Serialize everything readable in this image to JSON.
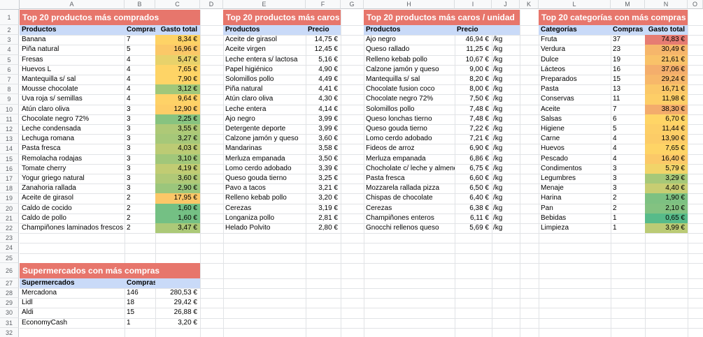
{
  "sheet": {
    "column_letters": [
      "A",
      "B",
      "C",
      "D",
      "E",
      "F",
      "G",
      "H",
      "I",
      "J",
      "K",
      "L",
      "M",
      "N",
      "O"
    ],
    "row_numbers": [
      "1",
      "2",
      "3",
      "4",
      "5",
      "6",
      "7",
      "8",
      "9",
      "10",
      "11",
      "12",
      "13",
      "14",
      "15",
      "16",
      "17",
      "18",
      "19",
      "20",
      "21",
      "22",
      "23",
      "24",
      "25",
      "26",
      "27",
      "28",
      "29",
      "30",
      "31",
      "32"
    ]
  },
  "colors": {
    "table_title_bg": "#e7766c",
    "table_title_text": "#ffffff",
    "header_row_bg": "#c9daf8",
    "gridline": "#e1e3e6",
    "gradient_min_color": "#57bb8a",
    "gradient_mid_color": "#ffd666",
    "gradient_max_color": "#e67c73"
  },
  "conditional_format": {
    "min": 0.65,
    "mid": 6.25,
    "max": 74.83
  },
  "tables": {
    "mas_comprados": {
      "title": "Top 20 productos más comprados",
      "headers": [
        "Productos",
        "Compras",
        "Gasto total"
      ],
      "rows": [
        [
          "Banana",
          "7",
          "8,34 €"
        ],
        [
          "Piña natural",
          "5",
          "16,96 €"
        ],
        [
          "Fresas",
          "4",
          "5,47 €"
        ],
        [
          "Huevos L",
          "4",
          "7,65 €"
        ],
        [
          "Mantequilla s/ sal",
          "4",
          "7,90 €"
        ],
        [
          "Mousse chocolate",
          "4",
          "3,12 €"
        ],
        [
          "Uva roja s/ semillas",
          "4",
          "9,64 €"
        ],
        [
          "Atún claro oliva",
          "3",
          "12,90 €"
        ],
        [
          "Chocolate negro 72%",
          "3",
          "2,25 €"
        ],
        [
          "Leche condensada",
          "3",
          "3,55 €"
        ],
        [
          "Lechuga romana",
          "3",
          "3,27 €"
        ],
        [
          "Pasta fresca",
          "3",
          "4,03 €"
        ],
        [
          "Remolacha rodajas",
          "3",
          "3,10 €"
        ],
        [
          "Tomate cherry",
          "3",
          "4,19 €"
        ],
        [
          "Yogur griego natural",
          "3",
          "3,60 €"
        ],
        [
          "Zanahoria rallada",
          "3",
          "2,90 €"
        ],
        [
          "Aceite de girasol",
          "2",
          "17,95 €"
        ],
        [
          "Caldo de cocido",
          "2",
          "1,60 €"
        ],
        [
          "Caldo de pollo",
          "2",
          "1,60 €"
        ],
        [
          "Champiñones laminados frescos",
          "2",
          "3,47 €"
        ]
      ]
    },
    "mas_caros": {
      "title": "Top 20 productos más caros",
      "headers": [
        "Productos",
        "Precio"
      ],
      "rows": [
        [
          "Aceite de girasol",
          "14,75 €"
        ],
        [
          "Aceite virgen",
          "12,45 €"
        ],
        [
          "Leche entera s/ lactosa",
          "5,16 €"
        ],
        [
          "Papel higiénico",
          "4,90 €"
        ],
        [
          "Solomillos pollo",
          "4,49 €"
        ],
        [
          "Piña natural",
          "4,41 €"
        ],
        [
          "Atún claro oliva",
          "4,30 €"
        ],
        [
          "Leche entera",
          "4,14 €"
        ],
        [
          "Ajo negro",
          "3,99 €"
        ],
        [
          "Detergente deporte",
          "3,99 €"
        ],
        [
          "Calzone jamón y queso",
          "3,60 €"
        ],
        [
          "Mandarinas",
          "3,58 €"
        ],
        [
          "Merluza empanada",
          "3,50 €"
        ],
        [
          "Lomo cerdo adobado",
          "3,39 €"
        ],
        [
          "Queso gouda tierno",
          "3,25 €"
        ],
        [
          "Pavo a tacos",
          "3,21 €"
        ],
        [
          "Relleno kebab pollo",
          "3,20 €"
        ],
        [
          "Cerezas",
          "3,19 €"
        ],
        [
          "Longaniza pollo",
          "2,81 €"
        ],
        [
          "Helado Polvito",
          "2,80 €"
        ]
      ]
    },
    "mas_caros_unidad": {
      "title": "Top 20 productos más caros / unidad",
      "headers": [
        "Productos",
        "Precio",
        ""
      ],
      "rows": [
        [
          "Ajo negro",
          "46,94 €",
          "/kg"
        ],
        [
          "Queso rallado",
          "11,25 €",
          "/kg"
        ],
        [
          "Relleno kebab pollo",
          "10,67 €",
          "/kg"
        ],
        [
          "Calzone jamón y queso",
          "9,00 €",
          "/kg"
        ],
        [
          "Mantequilla s/ sal",
          "8,20 €",
          "/kg"
        ],
        [
          "Chocolate fusion coco",
          "8,00 €",
          "/kg"
        ],
        [
          "Chocolate negro 72%",
          "7,50 €",
          "/kg"
        ],
        [
          "Solomillos pollo",
          "7,48 €",
          "/kg"
        ],
        [
          "Queso lonchas tierno",
          "7,48 €",
          "/kg"
        ],
        [
          "Queso gouda tierno",
          "7,22 €",
          "/kg"
        ],
        [
          "Lomo cerdo adobado",
          "7,21 €",
          "/kg"
        ],
        [
          "Fideos de arroz",
          "6,90 €",
          "/kg"
        ],
        [
          "Merluza empanada",
          "6,86 €",
          "/kg"
        ],
        [
          "Chocholate c/ leche y almendra",
          "6,75 €",
          "/kg"
        ],
        [
          "Pasta fresca",
          "6,60 €",
          "/kg"
        ],
        [
          "Mozzarela rallada pizza",
          "6,50 €",
          "/kg"
        ],
        [
          "Chispas de chocolate",
          "6,40 €",
          "/kg"
        ],
        [
          "Cerezas",
          "6,38 €",
          "/kg"
        ],
        [
          "Champiñones enteros",
          "6,11 €",
          "/kg"
        ],
        [
          "Gnocchi rellenos queso",
          "5,69 €",
          "/kg"
        ]
      ]
    },
    "categorias": {
      "title": "Top 20 categorías con más compras",
      "headers": [
        "Categorías",
        "Compras",
        "Gasto total"
      ],
      "rows": [
        [
          "Fruta",
          "37",
          "74,83 €"
        ],
        [
          "Verdura",
          "23",
          "30,49 €"
        ],
        [
          "Dulce",
          "19",
          "21,61 €"
        ],
        [
          "Lácteos",
          "16",
          "37,06 €"
        ],
        [
          "Preparados",
          "15",
          "29,24 €"
        ],
        [
          "Pasta",
          "13",
          "16,71 €"
        ],
        [
          "Conservas",
          "11",
          "11,98 €"
        ],
        [
          "Aceite",
          "7",
          "38,30 €"
        ],
        [
          "Salsas",
          "6",
          "6,70 €"
        ],
        [
          "Higiene",
          "5",
          "11,44 €"
        ],
        [
          "Carne",
          "4",
          "13,90 €"
        ],
        [
          "Huevos",
          "4",
          "7,65 €"
        ],
        [
          "Pescado",
          "4",
          "16,40 €"
        ],
        [
          "Condimentos",
          "3",
          "5,79 €"
        ],
        [
          "Legumbres",
          "3",
          "3,29 €"
        ],
        [
          "Menaje",
          "3",
          "4,40 €"
        ],
        [
          "Harina",
          "2",
          "1,90 €"
        ],
        [
          "Pan",
          "2",
          "2,10 €"
        ],
        [
          "Bebidas",
          "1",
          "0,65 €"
        ],
        [
          "Limpieza",
          "1",
          "3,99 €"
        ]
      ]
    },
    "supermercados": {
      "title": "Supermercados con más compras",
      "headers": [
        "Supermercados",
        "Compras",
        ""
      ],
      "rows": [
        [
          "Mercadona",
          "146",
          "280,53 €"
        ],
        [
          "Lidl",
          "18",
          "29,42 €"
        ],
        [
          "Aldi",
          "15",
          "26,88 €"
        ],
        [
          "EconomyCash",
          "1",
          "3,20 €"
        ]
      ]
    }
  }
}
